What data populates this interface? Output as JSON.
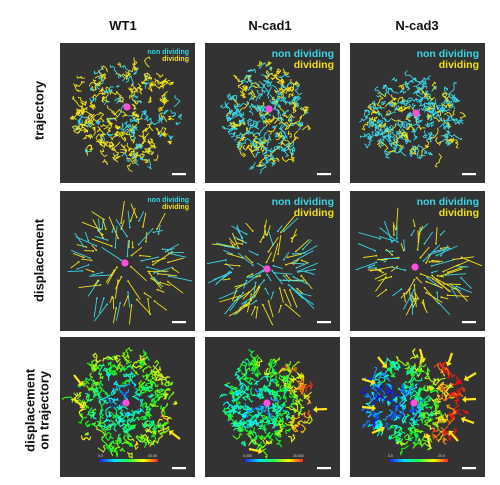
{
  "columns": [
    "WT1",
    "N-cad1",
    "N-cad3"
  ],
  "rows": [
    "trajectory",
    "displacement",
    "displacement\non trajectory"
  ],
  "legend": {
    "non_dividing": "non dividing",
    "dividing": "dividing"
  },
  "colors": {
    "non_dividing": "#39d6e6",
    "dividing": "#f2e21a",
    "center_marker": "#ff4fd8",
    "arrow": "#ffe81a",
    "panel_bg": "#333333"
  },
  "colorbar_ticks": {
    "WT1": [
      "0.0",
      "20.00"
    ],
    "N-cad1": [
      "0.000",
      "20.000"
    ],
    "N-cad3": [
      "0.0",
      "20.0"
    ]
  }
}
